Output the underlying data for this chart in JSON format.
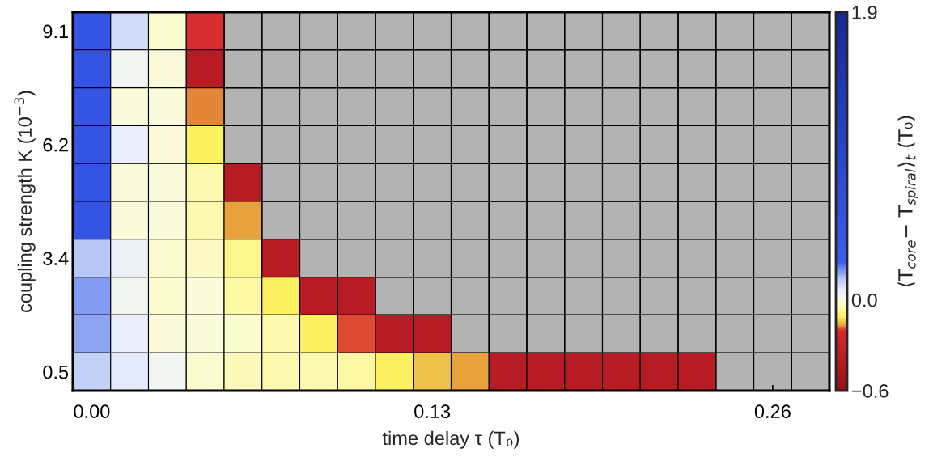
{
  "chart_data": {
    "type": "heatmap",
    "xlabel": "time delay τ (T₀)",
    "ylabel": "coupling strength K (10$^{−3}$)",
    "clabel": "⟨T$_{core}$− T$_{spiral}$⟩$_{t}$ (T₀)",
    "categories": [
      "0.00",
      null,
      null,
      null,
      null,
      null,
      null,
      null,
      null,
      "0.13",
      null,
      null,
      null,
      null,
      null,
      null,
      null,
      null,
      "0.26",
      null
    ],
    "y_categories": [
      "9.1",
      null,
      null,
      "6.2",
      null,
      null,
      "3.4",
      null,
      null,
      "0.5"
    ],
    "cells": [
      [
        0.5,
        0.1,
        -0.02,
        -0.2,
        null,
        null,
        null,
        null,
        null,
        null,
        null,
        null,
        null,
        null,
        null,
        null,
        null,
        null,
        null,
        null
      ],
      [
        0.5,
        0.03,
        -0.01,
        -0.4,
        null,
        null,
        null,
        null,
        null,
        null,
        null,
        null,
        null,
        null,
        null,
        null,
        null,
        null,
        null,
        null
      ],
      [
        0.5,
        -0.01,
        -0.01,
        -0.18,
        null,
        null,
        null,
        null,
        null,
        null,
        null,
        null,
        null,
        null,
        null,
        null,
        null,
        null,
        null,
        null
      ],
      [
        0.5,
        0.06,
        -0.01,
        -0.12,
        null,
        null,
        null,
        null,
        null,
        null,
        null,
        null,
        null,
        null,
        null,
        null,
        null,
        null,
        null,
        null
      ],
      [
        0.5,
        -0.01,
        -0.01,
        -0.05,
        -0.4,
        null,
        null,
        null,
        null,
        null,
        null,
        null,
        null,
        null,
        null,
        null,
        null,
        null,
        null,
        null
      ],
      [
        0.5,
        -0.01,
        -0.01,
        -0.05,
        -0.17,
        null,
        null,
        null,
        null,
        null,
        null,
        null,
        null,
        null,
        null,
        null,
        null,
        null,
        null,
        null
      ],
      [
        0.14,
        0.05,
        -0.02,
        -0.03,
        -0.08,
        -0.4,
        null,
        null,
        null,
        null,
        null,
        null,
        null,
        null,
        null,
        null,
        null,
        null,
        null,
        null
      ],
      [
        0.19,
        0.03,
        -0.02,
        -0.01,
        -0.06,
        -0.12,
        -0.4,
        -0.4,
        null,
        null,
        null,
        null,
        null,
        null,
        null,
        null,
        null,
        null,
        null,
        null
      ],
      [
        0.18,
        0.06,
        -0.01,
        -0.01,
        -0.02,
        -0.05,
        -0.12,
        -0.19,
        -0.4,
        -0.4,
        null,
        null,
        null,
        null,
        null,
        null,
        null,
        null,
        null,
        null
      ],
      [
        0.12,
        0.07,
        0.03,
        -0.02,
        -0.04,
        -0.05,
        -0.05,
        -0.06,
        -0.12,
        -0.15,
        -0.17,
        -0.4,
        -0.4,
        -0.4,
        -0.4,
        -0.4,
        -0.4,
        null,
        null,
        null
      ]
    ],
    "clim": [
      -0.6,
      1.9
    ],
    "cticks": [
      {
        "value": -0.6,
        "label": "−0.6"
      },
      {
        "value": 0,
        "label": "0.0"
      },
      1.9
    ]
  }
}
